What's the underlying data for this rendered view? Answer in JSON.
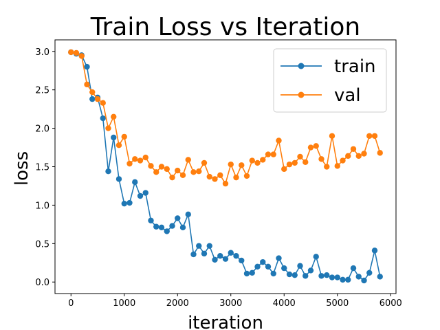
{
  "chart_data": {
    "type": "line",
    "title": "Train Loss vs Iteration",
    "xlabel": "iteration",
    "ylabel": "loss",
    "xlim": [
      -300,
      6100
    ],
    "ylim": [
      -0.15,
      3.15
    ],
    "xticks": [
      0,
      1000,
      2000,
      3000,
      4000,
      5000,
      6000
    ],
    "yticks": [
      0.0,
      0.5,
      1.0,
      1.5,
      2.0,
      2.5,
      3.0
    ],
    "xtick_labels": [
      "0",
      "1000",
      "2000",
      "3000",
      "4000",
      "5000",
      "6000"
    ],
    "ytick_labels": [
      "0.0",
      "0.5",
      "1.0",
      "1.5",
      "2.0",
      "2.5",
      "3.0"
    ],
    "grid": false,
    "legend": "top-right",
    "x": [
      0,
      100,
      200,
      300,
      400,
      500,
      600,
      700,
      800,
      900,
      1000,
      1100,
      1200,
      1300,
      1400,
      1500,
      1600,
      1700,
      1800,
      1900,
      2000,
      2100,
      2200,
      2300,
      2400,
      2500,
      2600,
      2700,
      2800,
      2900,
      3000,
      3100,
      3200,
      3300,
      3400,
      3500,
      3600,
      3700,
      3800,
      3900,
      4000,
      4100,
      4200,
      4300,
      4400,
      4500,
      4600,
      4700,
      4800,
      4900,
      5000,
      5100,
      5200,
      5300,
      5400,
      5500,
      5600,
      5700,
      5800
    ],
    "series": [
      {
        "name": "train",
        "color": "#1f77b4",
        "values": [
          2.99,
          2.97,
          2.95,
          2.8,
          2.38,
          2.4,
          2.13,
          1.44,
          1.88,
          1.34,
          1.02,
          1.03,
          1.3,
          1.12,
          1.16,
          0.8,
          0.72,
          0.71,
          0.66,
          0.73,
          0.83,
          0.71,
          0.88,
          0.36,
          0.47,
          0.37,
          0.47,
          0.29,
          0.34,
          0.3,
          0.38,
          0.34,
          0.28,
          0.11,
          0.12,
          0.2,
          0.26,
          0.2,
          0.11,
          0.31,
          0.18,
          0.1,
          0.09,
          0.21,
          0.08,
          0.15,
          0.33,
          0.08,
          0.09,
          0.06,
          0.06,
          0.03,
          0.03,
          0.18,
          0.07,
          0.02,
          0.12,
          0.41,
          0.07
        ]
      },
      {
        "name": "val",
        "color": "#ff7f0e",
        "values": [
          2.99,
          2.98,
          2.94,
          2.57,
          2.47,
          2.38,
          2.33,
          2.0,
          2.15,
          1.78,
          1.89,
          1.54,
          1.6,
          1.58,
          1.62,
          1.51,
          1.43,
          1.5,
          1.47,
          1.36,
          1.45,
          1.39,
          1.59,
          1.43,
          1.44,
          1.55,
          1.37,
          1.34,
          1.39,
          1.28,
          1.53,
          1.36,
          1.52,
          1.38,
          1.58,
          1.55,
          1.59,
          1.66,
          1.66,
          1.84,
          1.47,
          1.53,
          1.55,
          1.63,
          1.56,
          1.75,
          1.77,
          1.6,
          1.5,
          1.9,
          1.51,
          1.58,
          1.64,
          1.73,
          1.64,
          1.67,
          1.9,
          1.9,
          1.68
        ]
      }
    ]
  }
}
